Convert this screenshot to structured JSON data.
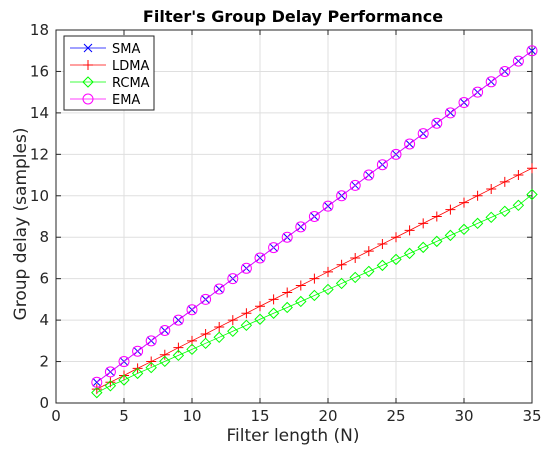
{
  "chart_data": {
    "type": "line",
    "title": "Filter's Group Delay Performance",
    "xlabel": "Filter length (N)",
    "ylabel": "Group delay (samples)",
    "xlim": [
      0,
      35
    ],
    "ylim": [
      0,
      18
    ],
    "xticks": [
      0,
      5,
      10,
      15,
      20,
      25,
      30,
      35
    ],
    "yticks": [
      0,
      2,
      4,
      6,
      8,
      10,
      12,
      14,
      16,
      18
    ],
    "grid": true,
    "legend_position": "top-left",
    "x": [
      3,
      4,
      5,
      6,
      7,
      8,
      9,
      10,
      11,
      12,
      13,
      14,
      15,
      16,
      17,
      18,
      19,
      20,
      21,
      22,
      23,
      24,
      25,
      26,
      27,
      28,
      29,
      30,
      31,
      32,
      33,
      34,
      35
    ],
    "series": [
      {
        "name": "SMA",
        "color": "#0000ff",
        "marker": "x",
        "values": [
          1,
          1.5,
          2,
          2.5,
          3,
          3.5,
          4,
          4.5,
          5,
          5.5,
          6,
          6.5,
          7,
          7.5,
          8,
          8.5,
          9,
          9.5,
          10,
          10.5,
          11,
          11.5,
          12,
          12.5,
          13,
          13.5,
          14,
          14.5,
          15,
          15.5,
          16,
          16.5,
          17
        ]
      },
      {
        "name": "LDMA",
        "color": "#ff0000",
        "marker": "+",
        "values": [
          0.67,
          1,
          1.33,
          1.67,
          2,
          2.33,
          2.67,
          3,
          3.33,
          3.67,
          4,
          4.33,
          4.67,
          5,
          5.33,
          5.67,
          6,
          6.33,
          6.67,
          7,
          7.33,
          7.67,
          8,
          8.33,
          8.67,
          9,
          9.33,
          9.67,
          10,
          10.33,
          10.67,
          11,
          11.33
        ]
      },
      {
        "name": "RCMA",
        "color": "#00ff00",
        "marker": "diamond",
        "values": [
          0.5,
          0.83,
          1.11,
          1.43,
          1.71,
          2.01,
          2.3,
          2.59,
          2.88,
          3.17,
          3.46,
          3.75,
          4.04,
          4.33,
          4.61,
          4.9,
          5.19,
          5.48,
          5.77,
          6.06,
          6.35,
          6.64,
          6.93,
          7.22,
          7.51,
          7.8,
          8.09,
          8.38,
          8.67,
          8.96,
          9.25,
          9.54,
          10.06
        ]
      },
      {
        "name": "EMA",
        "color": "#ff00ff",
        "marker": "circle",
        "values": [
          1,
          1.5,
          2,
          2.5,
          3,
          3.5,
          4,
          4.5,
          5,
          5.5,
          6,
          6.5,
          7,
          7.5,
          8,
          8.5,
          9,
          9.5,
          10,
          10.5,
          11,
          11.5,
          12,
          12.5,
          13,
          13.5,
          14,
          14.5,
          15,
          15.5,
          16,
          16.5,
          17
        ]
      }
    ]
  }
}
